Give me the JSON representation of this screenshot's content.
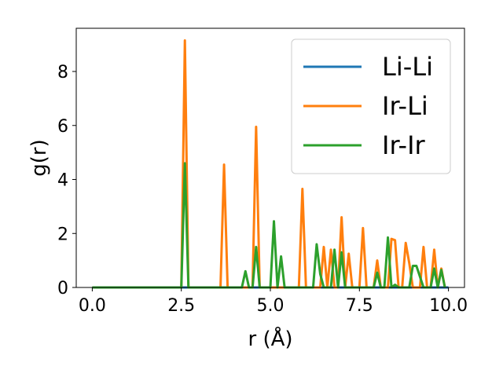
{
  "chart_data": {
    "type": "line",
    "title": "",
    "xlabel": "r (Å)",
    "ylabel": "g(r)",
    "xlim": [
      -0.45,
      10.45
    ],
    "ylim": [
      0,
      9.6
    ],
    "x_ticks": [
      0.0,
      2.5,
      5.0,
      7.5,
      10.0
    ],
    "x_tick_labels": [
      "0.0",
      "2.5",
      "5.0",
      "7.5",
      "10.0"
    ],
    "y_ticks": [
      0,
      2,
      4,
      6,
      8
    ],
    "y_tick_labels": [
      "0",
      "2",
      "4",
      "6",
      "8"
    ],
    "grid": false,
    "legend_position": "top-right",
    "series": [
      {
        "name": "Li-Li",
        "color": "#1f77b4",
        "points": [
          [
            0.0,
            0.0
          ],
          [
            10.0,
            0.0
          ]
        ]
      },
      {
        "name": "Ir-Li",
        "color": "#ff7f0e",
        "points": [
          [
            0.0,
            0.0
          ],
          [
            2.5,
            0.0
          ],
          [
            2.6,
            9.15
          ],
          [
            2.7,
            0.0
          ],
          [
            3.6,
            0.0
          ],
          [
            3.7,
            4.55
          ],
          [
            3.8,
            0.0
          ],
          [
            4.5,
            0.0
          ],
          [
            4.6,
            5.95
          ],
          [
            4.7,
            0.0
          ],
          [
            5.8,
            0.0
          ],
          [
            5.9,
            3.65
          ],
          [
            6.0,
            0.0
          ],
          [
            6.4,
            0.0
          ],
          [
            6.5,
            1.5
          ],
          [
            6.6,
            0.0
          ],
          [
            6.7,
            1.4
          ],
          [
            6.8,
            0.0
          ],
          [
            6.9,
            0.0
          ],
          [
            7.0,
            2.6
          ],
          [
            7.1,
            0.0
          ],
          [
            7.2,
            1.25
          ],
          [
            7.3,
            0.0
          ],
          [
            7.5,
            0.0
          ],
          [
            7.6,
            2.2
          ],
          [
            7.7,
            0.0
          ],
          [
            7.9,
            0.0
          ],
          [
            8.0,
            1.0
          ],
          [
            8.1,
            0.0
          ],
          [
            8.3,
            0.0
          ],
          [
            8.4,
            1.8
          ],
          [
            8.5,
            1.75
          ],
          [
            8.6,
            0.0
          ],
          [
            8.7,
            0.0
          ],
          [
            8.8,
            1.65
          ],
          [
            8.9,
            0.9
          ],
          [
            9.0,
            0.0
          ],
          [
            9.2,
            0.0
          ],
          [
            9.3,
            1.5
          ],
          [
            9.4,
            0.0
          ],
          [
            9.5,
            0.0
          ],
          [
            9.6,
            1.4
          ],
          [
            9.7,
            0.0
          ],
          [
            9.8,
            0.7
          ],
          [
            9.9,
            0.0
          ]
        ]
      },
      {
        "name": "Ir-Ir",
        "color": "#2ca02c",
        "points": [
          [
            0.0,
            0.0
          ],
          [
            2.5,
            0.0
          ],
          [
            2.6,
            4.6
          ],
          [
            2.7,
            0.0
          ],
          [
            4.2,
            0.0
          ],
          [
            4.3,
            0.6
          ],
          [
            4.4,
            0.0
          ],
          [
            4.5,
            0.0
          ],
          [
            4.6,
            1.5
          ],
          [
            4.7,
            0.0
          ],
          [
            5.0,
            0.0
          ],
          [
            5.1,
            2.45
          ],
          [
            5.2,
            0.0
          ],
          [
            5.3,
            1.15
          ],
          [
            5.4,
            0.0
          ],
          [
            6.2,
            0.0
          ],
          [
            6.3,
            1.6
          ],
          [
            6.4,
            0.5
          ],
          [
            6.5,
            0.0
          ],
          [
            6.7,
            0.0
          ],
          [
            6.8,
            1.4
          ],
          [
            6.9,
            0.0
          ],
          [
            7.0,
            1.3
          ],
          [
            7.1,
            0.0
          ],
          [
            7.9,
            0.0
          ],
          [
            8.0,
            0.55
          ],
          [
            8.1,
            0.0
          ],
          [
            8.2,
            0.0
          ],
          [
            8.3,
            1.85
          ],
          [
            8.4,
            0.0
          ],
          [
            8.5,
            0.1
          ],
          [
            8.6,
            0.0
          ],
          [
            8.9,
            0.0
          ],
          [
            9.0,
            0.8
          ],
          [
            9.1,
            0.8
          ],
          [
            9.2,
            0.4
          ],
          [
            9.3,
            0.0
          ],
          [
            9.5,
            0.0
          ],
          [
            9.6,
            0.7
          ],
          [
            9.7,
            0.0
          ],
          [
            9.8,
            0.65
          ],
          [
            9.9,
            0.0
          ]
        ]
      }
    ]
  }
}
